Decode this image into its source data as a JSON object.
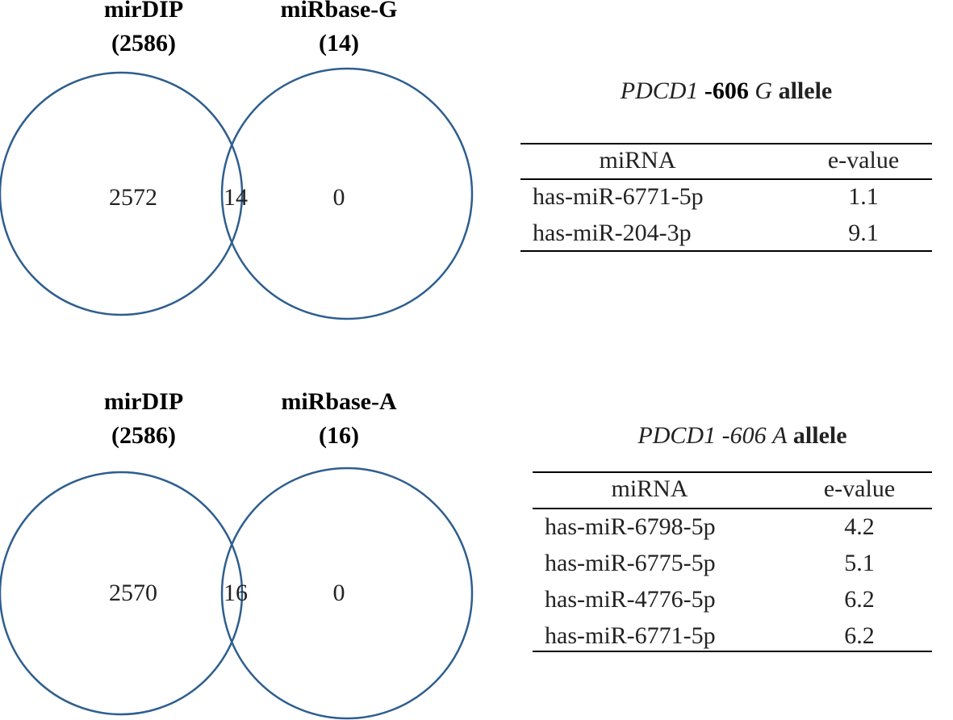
{
  "venns": [
    {
      "sets": [
        {
          "label": "mirDIP",
          "count": "(2586)"
        },
        {
          "label": "miRbase-G",
          "count": "(14)"
        }
      ],
      "regions": [
        "2572",
        "14",
        "0"
      ]
    },
    {
      "sets": [
        {
          "label": "mirDIP",
          "count": "(2586)"
        },
        {
          "label": "miRbase-A",
          "count": "(16)"
        }
      ],
      "regions": [
        "2570",
        "16",
        "0"
      ]
    }
  ],
  "tables": [
    {
      "title": [
        "PDCD1",
        "-606",
        "G",
        "allele"
      ],
      "header": [
        "miRNA",
        "e-value"
      ],
      "rows": [
        [
          "has-miR-6771-5p",
          "1.1"
        ],
        [
          "has-miR-204-3p",
          "9.1"
        ]
      ]
    },
    {
      "title": [
        "PDCD1",
        "-606",
        "A",
        "allele"
      ],
      "header": [
        "miRNA",
        "e-value"
      ],
      "rows": [
        [
          "has-miR-6798-5p",
          "4.2"
        ],
        [
          "has-miR-6775-5p",
          "5.1"
        ],
        [
          "has-miR-4776-5p",
          "6.2"
        ],
        [
          "has-miR-6771-5p",
          "6.2"
        ]
      ]
    }
  ]
}
